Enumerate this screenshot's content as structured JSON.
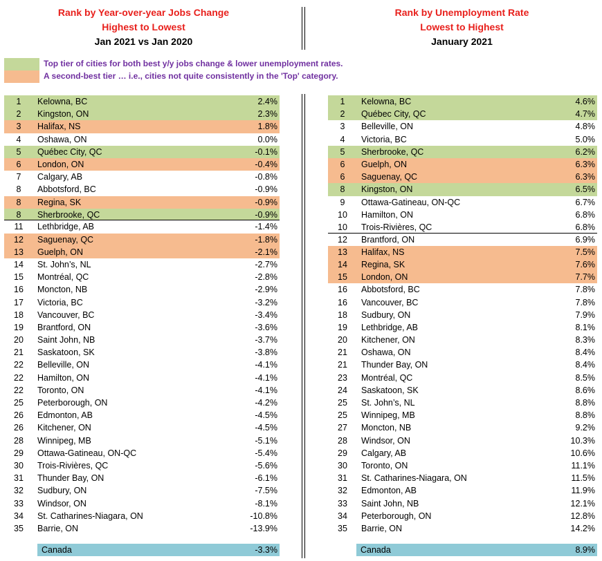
{
  "colors": {
    "title_red": "#e8201c",
    "legend_text": "#7030a0",
    "green_tier": "#c4d89a",
    "orange_tier": "#f6bb8f",
    "canada_row": "#8fcad7"
  },
  "left_header": {
    "line1": "Rank by Year-over-year Jobs Change",
    "line2": "Highest to Lowest",
    "line3": "Jan 2021 vs Jan 2020"
  },
  "right_header": {
    "line1": "Rank by Unemployment Rate",
    "line2": "Lowest to Highest",
    "line3": "January 2021"
  },
  "legend": {
    "top_tier": "Top tier of cities for both best y/y jobs change & lower unemployment rates.",
    "second_tier": "A second-best tier … i.e., cities not quite consistently in the 'Top' category."
  },
  "left_rows": [
    {
      "rank": "1",
      "city": "Kelowna, BC",
      "value": "2.4%",
      "tier": "green"
    },
    {
      "rank": "2",
      "city": "Kingston, ON",
      "value": "2.3%",
      "tier": "green"
    },
    {
      "rank": "3",
      "city": "Halifax, NS",
      "value": "1.8%",
      "tier": "orange"
    },
    {
      "rank": "4",
      "city": "Oshawa, ON",
      "value": "0.0%",
      "tier": ""
    },
    {
      "rank": "5",
      "city": "Québec City, QC",
      "value": "-0.1%",
      "tier": "green"
    },
    {
      "rank": "6",
      "city": "London, ON",
      "value": "-0.4%",
      "tier": "orange"
    },
    {
      "rank": "7",
      "city": "Calgary, AB",
      "value": "-0.8%",
      "tier": ""
    },
    {
      "rank": "8",
      "city": "Abbotsford, BC",
      "value": "-0.9%",
      "tier": ""
    },
    {
      "rank": "8",
      "city": "Regina, SK",
      "value": "-0.9%",
      "tier": "orange"
    },
    {
      "rank": "8",
      "city": "Sherbrooke, QC",
      "value": "-0.9%",
      "tier": "green",
      "cut": true
    },
    {
      "rank": "11",
      "city": "Lethbridge, AB",
      "value": "-1.4%",
      "tier": ""
    },
    {
      "rank": "12",
      "city": "Saguenay, QC",
      "value": "-1.8%",
      "tier": "orange"
    },
    {
      "rank": "13",
      "city": "Guelph, ON",
      "value": "-2.1%",
      "tier": "orange"
    },
    {
      "rank": "14",
      "city": "St. John’s, NL",
      "value": "-2.7%",
      "tier": ""
    },
    {
      "rank": "15",
      "city": "Montréal, QC",
      "value": "-2.8%",
      "tier": ""
    },
    {
      "rank": "16",
      "city": "Moncton, NB",
      "value": "-2.9%",
      "tier": ""
    },
    {
      "rank": "17",
      "city": "Victoria, BC",
      "value": "-3.2%",
      "tier": ""
    },
    {
      "rank": "18",
      "city": "Vancouver, BC",
      "value": "-3.4%",
      "tier": ""
    },
    {
      "rank": "19",
      "city": "Brantford, ON",
      "value": "-3.6%",
      "tier": ""
    },
    {
      "rank": "20",
      "city": "Saint John, NB",
      "value": "-3.7%",
      "tier": ""
    },
    {
      "rank": "21",
      "city": "Saskatoon, SK",
      "value": "-3.8%",
      "tier": ""
    },
    {
      "rank": "22",
      "city": "Belleville, ON",
      "value": "-4.1%",
      "tier": ""
    },
    {
      "rank": "22",
      "city": "Hamilton, ON",
      "value": "-4.1%",
      "tier": ""
    },
    {
      "rank": "22",
      "city": "Toronto, ON",
      "value": "-4.1%",
      "tier": ""
    },
    {
      "rank": "25",
      "city": "Peterborough, ON",
      "value": "-4.2%",
      "tier": ""
    },
    {
      "rank": "26",
      "city": "Edmonton, AB",
      "value": "-4.5%",
      "tier": ""
    },
    {
      "rank": "26",
      "city": "Kitchener, ON",
      "value": "-4.5%",
      "tier": ""
    },
    {
      "rank": "28",
      "city": "Winnipeg, MB",
      "value": "-5.1%",
      "tier": ""
    },
    {
      "rank": "29",
      "city": "Ottawa-Gatineau, ON-QC",
      "value": "-5.4%",
      "tier": ""
    },
    {
      "rank": "30",
      "city": "Trois-Rivières, QC",
      "value": "-5.6%",
      "tier": ""
    },
    {
      "rank": "31",
      "city": "Thunder Bay, ON",
      "value": "-6.1%",
      "tier": ""
    },
    {
      "rank": "32",
      "city": "Sudbury, ON",
      "value": "-7.5%",
      "tier": ""
    },
    {
      "rank": "33",
      "city": "Windsor, ON",
      "value": "-8.1%",
      "tier": ""
    },
    {
      "rank": "34",
      "city": "St. Catharines-Niagara, ON",
      "value": "-10.8%",
      "tier": ""
    },
    {
      "rank": "35",
      "city": "Barrie, ON",
      "value": "-13.9%",
      "tier": ""
    }
  ],
  "right_rows": [
    {
      "rank": "1",
      "city": "Kelowna, BC",
      "value": "4.6%",
      "tier": "green"
    },
    {
      "rank": "2",
      "city": "Québec City, QC",
      "value": "4.7%",
      "tier": "green"
    },
    {
      "rank": "3",
      "city": "Belleville, ON",
      "value": "4.8%",
      "tier": ""
    },
    {
      "rank": "4",
      "city": "Victoria, BC",
      "value": "5.0%",
      "tier": ""
    },
    {
      "rank": "5",
      "city": "Sherbrooke, QC",
      "value": "6.2%",
      "tier": "green"
    },
    {
      "rank": "6",
      "city": "Guelph, ON",
      "value": "6.3%",
      "tier": "orange"
    },
    {
      "rank": "6",
      "city": "Saguenay, QC",
      "value": "6.3%",
      "tier": "orange"
    },
    {
      "rank": "8",
      "city": "Kingston, ON",
      "value": "6.5%",
      "tier": "green"
    },
    {
      "rank": "9",
      "city": "Ottawa-Gatineau, ON-QC",
      "value": "6.7%",
      "tier": ""
    },
    {
      "rank": "10",
      "city": "Hamilton, ON",
      "value": "6.8%",
      "tier": ""
    },
    {
      "rank": "10",
      "city": "Trois-Rivières, QC",
      "value": "6.8%",
      "tier": "",
      "cut": true
    },
    {
      "rank": "12",
      "city": "Brantford, ON",
      "value": "6.9%",
      "tier": ""
    },
    {
      "rank": "13",
      "city": "Halifax, NS",
      "value": "7.5%",
      "tier": "orange"
    },
    {
      "rank": "14",
      "city": "Regina, SK",
      "value": "7.6%",
      "tier": "orange"
    },
    {
      "rank": "15",
      "city": "London, ON",
      "value": "7.7%",
      "tier": "orange"
    },
    {
      "rank": "16",
      "city": "Abbotsford, BC",
      "value": "7.8%",
      "tier": ""
    },
    {
      "rank": "16",
      "city": "Vancouver, BC",
      "value": "7.8%",
      "tier": ""
    },
    {
      "rank": "18",
      "city": "Sudbury, ON",
      "value": "7.9%",
      "tier": ""
    },
    {
      "rank": "19",
      "city": "Lethbridge, AB",
      "value": "8.1%",
      "tier": ""
    },
    {
      "rank": "20",
      "city": "Kitchener, ON",
      "value": "8.3%",
      "tier": ""
    },
    {
      "rank": "21",
      "city": "Oshawa, ON",
      "value": "8.4%",
      "tier": ""
    },
    {
      "rank": "21",
      "city": "Thunder Bay, ON",
      "value": "8.4%",
      "tier": ""
    },
    {
      "rank": "23",
      "city": "Montréal, QC",
      "value": "8.5%",
      "tier": ""
    },
    {
      "rank": "24",
      "city": "Saskatoon, SK",
      "value": "8.6%",
      "tier": ""
    },
    {
      "rank": "25",
      "city": "St. John’s, NL",
      "value": "8.8%",
      "tier": ""
    },
    {
      "rank": "25",
      "city": "Winnipeg, MB",
      "value": "8.8%",
      "tier": ""
    },
    {
      "rank": "27",
      "city": "Moncton, NB",
      "value": "9.2%",
      "tier": ""
    },
    {
      "rank": "28",
      "city": "Windsor, ON",
      "value": "10.3%",
      "tier": ""
    },
    {
      "rank": "29",
      "city": "Calgary, AB",
      "value": "10.6%",
      "tier": ""
    },
    {
      "rank": "30",
      "city": "Toronto, ON",
      "value": "11.1%",
      "tier": ""
    },
    {
      "rank": "31",
      "city": "St. Catharines-Niagara, ON",
      "value": "11.5%",
      "tier": ""
    },
    {
      "rank": "32",
      "city": "Edmonton, AB",
      "value": "11.9%",
      "tier": ""
    },
    {
      "rank": "33",
      "city": "Saint John, NB",
      "value": "12.1%",
      "tier": ""
    },
    {
      "rank": "34",
      "city": "Peterborough, ON",
      "value": "12.8%",
      "tier": ""
    },
    {
      "rank": "35",
      "city": "Barrie, ON",
      "value": "14.2%",
      "tier": ""
    }
  ],
  "canada_left": {
    "label": "Canada",
    "value": "-3.3%"
  },
  "canada_right": {
    "label": "Canada",
    "value": "8.9%"
  }
}
